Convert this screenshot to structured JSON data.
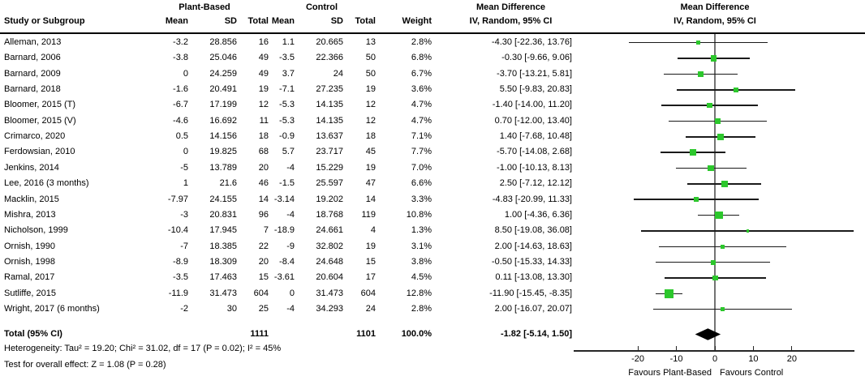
{
  "colors": {
    "marker_green": "#2cc72c",
    "diamond_black": "#000000",
    "ci_line": "#1a1a1a",
    "zero_line": "#737373",
    "header_rule": "#000000"
  },
  "header": {
    "group_plant": "Plant-Based",
    "group_control": "Control",
    "md_text_col": "Mean Difference",
    "md_plot_col": "Mean Difference",
    "col_study": "Study or Subgroup",
    "col_mean": "Mean",
    "col_sd": "SD",
    "col_total": "Total",
    "col_mean2": "Mean",
    "col_sd2": "SD",
    "col_total2": "Total",
    "col_weight": "Weight",
    "col_iv_text": "IV, Random, 95% CI",
    "col_iv_plot": "IV, Random, 95% CI"
  },
  "chart_data": {
    "type": "forest",
    "title": "Mean Difference IV, Random, 95% CI",
    "effect_measure": "Mean Difference",
    "model": "IV, Random, 95% CI",
    "x_axis": {
      "ticks": [
        -20,
        -10,
        0,
        10,
        20
      ],
      "range": [
        -36.5,
        36.3
      ],
      "favours_left": "Favours Plant-Based",
      "favours_right": "Favours Control"
    },
    "studies": [
      {
        "name": "Alleman, 2013",
        "mean_pb": -3.2,
        "sd_pb": 28.856,
        "total_pb": 16,
        "mean_c": 1.1,
        "sd_c": 20.665,
        "total_c": 13,
        "weight": "2.8%",
        "md": -4.3,
        "ci_low": -22.36,
        "ci_high": 13.76,
        "ci_text": "-4.30 [-22.36, 13.76]"
      },
      {
        "name": "Barnard, 2006",
        "mean_pb": -3.8,
        "sd_pb": 25.046,
        "total_pb": 49,
        "mean_c": -3.5,
        "sd_c": 22.366,
        "total_c": 50,
        "weight": "6.8%",
        "md": -0.3,
        "ci_low": -9.66,
        "ci_high": 9.06,
        "ci_text": "-0.30 [-9.66, 9.06]"
      },
      {
        "name": "Barnard, 2009",
        "mean_pb": 0,
        "sd_pb": 24.259,
        "total_pb": 49,
        "mean_c": 3.7,
        "sd_c": 24,
        "total_c": 50,
        "weight": "6.7%",
        "md": -3.7,
        "ci_low": -13.21,
        "ci_high": 5.81,
        "ci_text": "-3.70 [-13.21, 5.81]"
      },
      {
        "name": "Barnard, 2018",
        "mean_pb": -1.6,
        "sd_pb": 20.491,
        "total_pb": 19,
        "mean_c": -7.1,
        "sd_c": 27.235,
        "total_c": 19,
        "weight": "3.6%",
        "md": 5.5,
        "ci_low": -9.83,
        "ci_high": 20.83,
        "ci_text": "5.50 [-9.83, 20.83]"
      },
      {
        "name": "Bloomer, 2015 (T)",
        "mean_pb": -6.7,
        "sd_pb": 17.199,
        "total_pb": 12,
        "mean_c": -5.3,
        "sd_c": 14.135,
        "total_c": 12,
        "weight": "4.7%",
        "md": -1.4,
        "ci_low": -14.0,
        "ci_high": 11.2,
        "ci_text": "-1.40 [-14.00, 11.20]"
      },
      {
        "name": "Bloomer, 2015 (V)",
        "mean_pb": -4.6,
        "sd_pb": 16.692,
        "total_pb": 11,
        "mean_c": -5.3,
        "sd_c": 14.135,
        "total_c": 12,
        "weight": "4.7%",
        "md": 0.7,
        "ci_low": -12.0,
        "ci_high": 13.4,
        "ci_text": "0.70 [-12.00, 13.40]"
      },
      {
        "name": "Crimarco, 2020",
        "mean_pb": 0.5,
        "sd_pb": 14.156,
        "total_pb": 18,
        "mean_c": -0.9,
        "sd_c": 13.637,
        "total_c": 18,
        "weight": "7.1%",
        "md": 1.4,
        "ci_low": -7.68,
        "ci_high": 10.48,
        "ci_text": "1.40 [-7.68, 10.48]"
      },
      {
        "name": "Ferdowsian, 2010",
        "mean_pb": 0,
        "sd_pb": 19.825,
        "total_pb": 68,
        "mean_c": 5.7,
        "sd_c": 23.717,
        "total_c": 45,
        "weight": "7.7%",
        "md": -5.7,
        "ci_low": -14.08,
        "ci_high": 2.68,
        "ci_text": "-5.70 [-14.08, 2.68]"
      },
      {
        "name": "Jenkins, 2014",
        "mean_pb": -5,
        "sd_pb": 13.789,
        "total_pb": 20,
        "mean_c": -4,
        "sd_c": 15.229,
        "total_c": 19,
        "weight": "7.0%",
        "md": -1.0,
        "ci_low": -10.13,
        "ci_high": 8.13,
        "ci_text": "-1.00 [-10.13, 8.13]"
      },
      {
        "name": "Lee, 2016 (3 months)",
        "mean_pb": 1,
        "sd_pb": 21.6,
        "total_pb": 46,
        "mean_c": -1.5,
        "sd_c": 25.597,
        "total_c": 47,
        "weight": "6.6%",
        "md": 2.5,
        "ci_low": -7.12,
        "ci_high": 12.12,
        "ci_text": "2.50 [-7.12, 12.12]"
      },
      {
        "name": "Macklin, 2015",
        "mean_pb": -7.97,
        "sd_pb": 24.155,
        "total_pb": 14,
        "mean_c": -3.14,
        "sd_c": 19.202,
        "total_c": 14,
        "weight": "3.3%",
        "md": -4.83,
        "ci_low": -20.99,
        "ci_high": 11.33,
        "ci_text": "-4.83 [-20.99, 11.33]"
      },
      {
        "name": "Mishra, 2013",
        "mean_pb": -3,
        "sd_pb": 20.831,
        "total_pb": 96,
        "mean_c": -4,
        "sd_c": 18.768,
        "total_c": 119,
        "weight": "10.8%",
        "md": 1.0,
        "ci_low": -4.36,
        "ci_high": 6.36,
        "ci_text": "1.00 [-4.36, 6.36]"
      },
      {
        "name": "Nicholson, 1999",
        "mean_pb": -10.4,
        "sd_pb": 17.945,
        "total_pb": 7,
        "mean_c": -18.9,
        "sd_c": 24.661,
        "total_c": 4,
        "weight": "1.3%",
        "md": 8.5,
        "ci_low": -19.08,
        "ci_high": 36.08,
        "ci_text": "8.50 [-19.08, 36.08]"
      },
      {
        "name": "Ornish, 1990",
        "mean_pb": -7,
        "sd_pb": 18.385,
        "total_pb": 22,
        "mean_c": -9,
        "sd_c": 32.802,
        "total_c": 19,
        "weight": "3.1%",
        "md": 2.0,
        "ci_low": -14.63,
        "ci_high": 18.63,
        "ci_text": "2.00 [-14.63, 18.63]"
      },
      {
        "name": "Ornish, 1998",
        "mean_pb": -8.9,
        "sd_pb": 18.309,
        "total_pb": 20,
        "mean_c": -8.4,
        "sd_c": 24.648,
        "total_c": 15,
        "weight": "3.8%",
        "md": -0.5,
        "ci_low": -15.33,
        "ci_high": 14.33,
        "ci_text": "-0.50 [-15.33, 14.33]"
      },
      {
        "name": "Ramal, 2017",
        "mean_pb": -3.5,
        "sd_pb": 17.463,
        "total_pb": 15,
        "mean_c": -3.61,
        "sd_c": 20.604,
        "total_c": 17,
        "weight": "4.5%",
        "md": 0.11,
        "ci_low": -13.08,
        "ci_high": 13.3,
        "ci_text": "0.11 [-13.08, 13.30]"
      },
      {
        "name": "Sutliffe, 2015",
        "mean_pb": -11.9,
        "sd_pb": 31.473,
        "total_pb": 604,
        "mean_c": 0,
        "sd_c": 31.473,
        "total_c": 604,
        "weight": "12.8%",
        "md": -11.9,
        "ci_low": -15.45,
        "ci_high": -8.35,
        "ci_text": "-11.90 [-15.45, -8.35]"
      },
      {
        "name": "Wright, 2017 (6 months)",
        "mean_pb": -2,
        "sd_pb": 30,
        "total_pb": 25,
        "mean_c": -4,
        "sd_c": 34.293,
        "total_c": 24,
        "weight": "2.8%",
        "md": 2.0,
        "ci_low": -16.07,
        "ci_high": 20.07,
        "ci_text": "2.00 [-16.07, 20.07]"
      }
    ],
    "total": {
      "label": "Total (95% CI)",
      "total_pb": 1111,
      "total_c": 1101,
      "weight": "100.0%",
      "md": -1.82,
      "ci_low": -5.14,
      "ci_high": 1.5,
      "ci_text": "-1.82 [-5.14, 1.50]"
    },
    "heterogeneity": "Heterogeneity: Tau² = 19.20; Chi² = 31.02, df = 17 (P = 0.02); I² = 45%",
    "overall_effect": "Test for overall effect: Z = 1.08 (P = 0.28)"
  }
}
